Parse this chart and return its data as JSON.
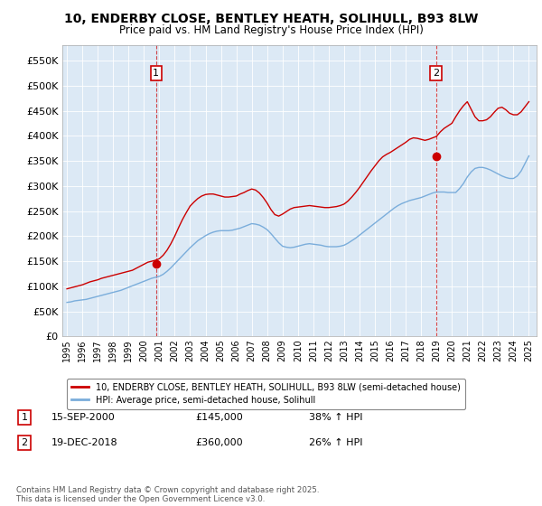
{
  "title": "10, ENDERBY CLOSE, BENTLEY HEATH, SOLIHULL, B93 8LW",
  "subtitle": "Price paid vs. HM Land Registry's House Price Index (HPI)",
  "legend_label_red": "10, ENDERBY CLOSE, BENTLEY HEATH, SOLIHULL, B93 8LW (semi-detached house)",
  "legend_label_blue": "HPI: Average price, semi-detached house, Solihull",
  "footnote": "Contains HM Land Registry data © Crown copyright and database right 2025.\nThis data is licensed under the Open Government Licence v3.0.",
  "marker1_date": "15-SEP-2000",
  "marker1_price": "£145,000",
  "marker1_hpi": "38% ↑ HPI",
  "marker2_date": "19-DEC-2018",
  "marker2_price": "£360,000",
  "marker2_hpi": "26% ↑ HPI",
  "red_color": "#cc0000",
  "blue_color": "#7aaddb",
  "background_color": "#ffffff",
  "plot_bg_color": "#dce9f5",
  "ylim": [
    0,
    580000
  ],
  "yticks": [
    0,
    50000,
    100000,
    150000,
    200000,
    250000,
    300000,
    350000,
    400000,
    450000,
    500000,
    550000
  ],
  "xlim_start": 1994.7,
  "xlim_end": 2025.5,
  "marker1_x": 2000.79,
  "marker1_y": 145000,
  "marker2_x": 2018.96,
  "marker2_y": 360000,
  "years_blue": [
    1995.0,
    1995.25,
    1995.5,
    1995.75,
    1996.0,
    1996.25,
    1996.5,
    1996.75,
    1997.0,
    1997.25,
    1997.5,
    1997.75,
    1998.0,
    1998.25,
    1998.5,
    1998.75,
    1999.0,
    1999.25,
    1999.5,
    1999.75,
    2000.0,
    2000.25,
    2000.5,
    2000.75,
    2001.0,
    2001.25,
    2001.5,
    2001.75,
    2002.0,
    2002.25,
    2002.5,
    2002.75,
    2003.0,
    2003.25,
    2003.5,
    2003.75,
    2004.0,
    2004.25,
    2004.5,
    2004.75,
    2005.0,
    2005.25,
    2005.5,
    2005.75,
    2006.0,
    2006.25,
    2006.5,
    2006.75,
    2007.0,
    2007.25,
    2007.5,
    2007.75,
    2008.0,
    2008.25,
    2008.5,
    2008.75,
    2009.0,
    2009.25,
    2009.5,
    2009.75,
    2010.0,
    2010.25,
    2010.5,
    2010.75,
    2011.0,
    2011.25,
    2011.5,
    2011.75,
    2012.0,
    2012.25,
    2012.5,
    2012.75,
    2013.0,
    2013.25,
    2013.5,
    2013.75,
    2014.0,
    2014.25,
    2014.5,
    2014.75,
    2015.0,
    2015.25,
    2015.5,
    2015.75,
    2016.0,
    2016.25,
    2016.5,
    2016.75,
    2017.0,
    2017.25,
    2017.5,
    2017.75,
    2018.0,
    2018.25,
    2018.5,
    2018.75,
    2019.0,
    2019.25,
    2019.5,
    2019.75,
    2020.0,
    2020.25,
    2020.5,
    2020.75,
    2021.0,
    2021.25,
    2021.5,
    2021.75,
    2022.0,
    2022.25,
    2022.5,
    2022.75,
    2023.0,
    2023.25,
    2023.5,
    2023.75,
    2024.0,
    2024.25,
    2024.5,
    2024.75,
    2025.0
  ],
  "blue_vals": [
    68000,
    69000,
    71000,
    72000,
    73000,
    74000,
    76000,
    78000,
    80000,
    82000,
    84000,
    86000,
    88000,
    90000,
    92000,
    95000,
    98000,
    101000,
    104000,
    107000,
    110000,
    113000,
    116000,
    118000,
    120000,
    124000,
    130000,
    137000,
    145000,
    153000,
    161000,
    169000,
    177000,
    184000,
    191000,
    196000,
    201000,
    205000,
    208000,
    210000,
    211000,
    211000,
    211000,
    212000,
    214000,
    216000,
    219000,
    222000,
    225000,
    224000,
    222000,
    218000,
    213000,
    205000,
    196000,
    187000,
    180000,
    178000,
    177000,
    178000,
    180000,
    182000,
    184000,
    185000,
    184000,
    183000,
    182000,
    180000,
    179000,
    179000,
    179000,
    180000,
    182000,
    186000,
    191000,
    196000,
    202000,
    208000,
    214000,
    220000,
    226000,
    232000,
    238000,
    244000,
    250000,
    256000,
    261000,
    265000,
    268000,
    271000,
    273000,
    275000,
    277000,
    280000,
    283000,
    286000,
    288000,
    288000,
    288000,
    287000,
    287000,
    287000,
    295000,
    305000,
    318000,
    328000,
    335000,
    337000,
    337000,
    335000,
    332000,
    328000,
    324000,
    320000,
    317000,
    315000,
    315000,
    320000,
    330000,
    345000,
    360000
  ],
  "red_vals": [
    95000,
    97000,
    99000,
    101000,
    103000,
    106000,
    109000,
    111000,
    113000,
    116000,
    118000,
    120000,
    122000,
    124000,
    126000,
    128000,
    130000,
    132000,
    136000,
    140000,
    144000,
    148000,
    150000,
    152000,
    155000,
    162000,
    172000,
    185000,
    200000,
    217000,
    233000,
    247000,
    260000,
    268000,
    275000,
    280000,
    283000,
    284000,
    284000,
    282000,
    280000,
    278000,
    278000,
    279000,
    280000,
    284000,
    287000,
    291000,
    294000,
    292000,
    286000,
    277000,
    266000,
    253000,
    243000,
    240000,
    244000,
    249000,
    254000,
    257000,
    258000,
    259000,
    260000,
    261000,
    260000,
    259000,
    258000,
    257000,
    257000,
    258000,
    259000,
    261000,
    264000,
    270000,
    278000,
    287000,
    297000,
    308000,
    319000,
    330000,
    340000,
    350000,
    358000,
    363000,
    367000,
    372000,
    377000,
    382000,
    387000,
    393000,
    396000,
    395000,
    393000,
    391000,
    393000,
    396000,
    399000,
    408000,
    415000,
    420000,
    425000,
    438000,
    450000,
    460000,
    468000,
    453000,
    438000,
    430000,
    430000,
    432000,
    438000,
    447000,
    455000,
    457000,
    452000,
    445000,
    442000,
    442000,
    448000,
    458000,
    468000
  ]
}
